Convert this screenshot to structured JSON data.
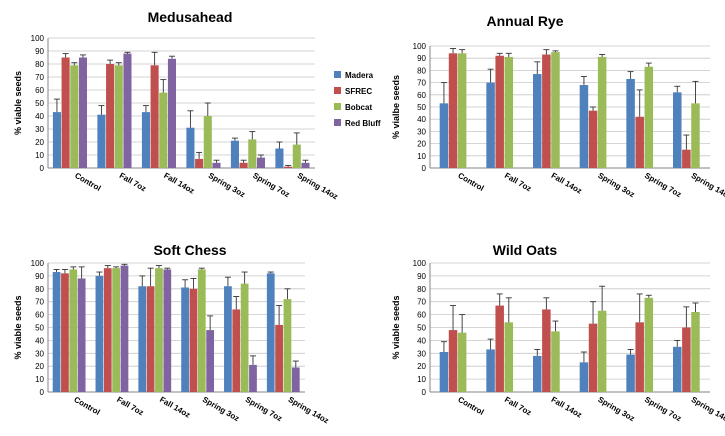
{
  "colors": {
    "Madera": "#4f81bd",
    "SFREC": "#c0504d",
    "Bobcat": "#9bbb59",
    "Red Bluff": "#8064a2",
    "error_bar": "#333333",
    "axis": "#868686",
    "grid": "#c8c8c8"
  },
  "chart_data": [
    {
      "type": "bar",
      "title": "Medusahead",
      "ylabel": "% viable seeds",
      "ylim": [
        0,
        100
      ],
      "yticks": [
        0,
        10,
        20,
        30,
        40,
        50,
        60,
        70,
        80,
        90,
        100
      ],
      "grid": true,
      "legend": "right",
      "categories": [
        "Control",
        "Fall 7oz",
        "Fall 14oz",
        "Spring 3oz",
        "Spring 7oz",
        "Spring 14oz"
      ],
      "series": [
        {
          "name": "Madera",
          "values": [
            43,
            41,
            43,
            31,
            21,
            15
          ],
          "errors": [
            10,
            7,
            5,
            13,
            2,
            5
          ]
        },
        {
          "name": "SFREC",
          "values": [
            85,
            80,
            79,
            7,
            4,
            1
          ],
          "errors": [
            3,
            3,
            10,
            5,
            2,
            1
          ]
        },
        {
          "name": "Bobcat",
          "values": [
            79,
            79,
            58,
            40,
            22,
            18
          ],
          "errors": [
            2,
            2,
            10,
            10,
            6,
            9
          ]
        },
        {
          "name": "Red Bluff",
          "values": [
            85,
            88,
            84,
            4,
            8,
            4
          ],
          "errors": [
            2,
            1,
            2,
            2,
            2,
            2
          ]
        }
      ]
    },
    {
      "type": "bar",
      "title": "Annual Rye",
      "ylabel": "% vialbe seeds",
      "ylim": [
        0,
        100
      ],
      "yticks": [
        0,
        10,
        20,
        30,
        40,
        50,
        60,
        70,
        80,
        90,
        100
      ],
      "grid": true,
      "categories": [
        "Control",
        "Fall 7oz",
        "Fall 14oz",
        "Spring 3oz",
        "Spring 7oz",
        "Spring 14oz"
      ],
      "series": [
        {
          "name": "Madera",
          "values": [
            53,
            70,
            77,
            68,
            73,
            62
          ],
          "errors": [
            17,
            11,
            10,
            7,
            6,
            5
          ]
        },
        {
          "name": "SFREC",
          "values": [
            94,
            92,
            93,
            47,
            42,
            15
          ],
          "errors": [
            4,
            2,
            4,
            3,
            22,
            12
          ]
        },
        {
          "name": "Bobcat",
          "values": [
            94,
            91,
            95,
            91,
            83,
            53
          ],
          "errors": [
            3,
            3,
            1,
            2,
            3,
            18
          ]
        }
      ]
    },
    {
      "type": "bar",
      "title": "Soft Chess",
      "ylabel": "% viable seeds",
      "ylim": [
        0,
        100
      ],
      "yticks": [
        0,
        10,
        20,
        30,
        40,
        50,
        60,
        70,
        80,
        90,
        100
      ],
      "grid": true,
      "categories": [
        "Control",
        "Fall 7oz",
        "Fall 14oz",
        "Spring 3oz",
        "Spring 7oz",
        "Spring 14oz"
      ],
      "series": [
        {
          "name": "Madera",
          "values": [
            93,
            90,
            82,
            81,
            82,
            92
          ],
          "errors": [
            2,
            3,
            8,
            6,
            7,
            1
          ]
        },
        {
          "name": "SFREC",
          "values": [
            92,
            96,
            82,
            80,
            64,
            52
          ],
          "errors": [
            3,
            2,
            14,
            8,
            10,
            15
          ]
        },
        {
          "name": "Bobcat",
          "values": [
            95,
            96,
            96,
            95,
            84,
            72
          ],
          "errors": [
            2,
            1,
            2,
            1,
            9,
            8
          ]
        },
        {
          "name": "Red Bluff",
          "values": [
            88,
            98,
            95,
            48,
            21,
            19
          ],
          "errors": [
            9,
            1,
            1,
            11,
            7,
            5
          ]
        }
      ]
    },
    {
      "type": "bar",
      "title": "Wild Oats",
      "ylabel": "% viable seeds",
      "ylim": [
        0,
        100
      ],
      "yticks": [
        0,
        10,
        20,
        30,
        40,
        50,
        60,
        70,
        80,
        90,
        100
      ],
      "grid": true,
      "categories": [
        "Control",
        "Fall 7oz",
        "Fall 14oz",
        "Spring 3oz",
        "Spring 7oz",
        "Spring 14oz"
      ],
      "series": [
        {
          "name": "Madera",
          "values": [
            31,
            33,
            28,
            23,
            29,
            35
          ],
          "errors": [
            8,
            8,
            5,
            8,
            4,
            5
          ]
        },
        {
          "name": "SFREC",
          "values": [
            48,
            67,
            64,
            53,
            54,
            50
          ],
          "errors": [
            19,
            9,
            9,
            17,
            22,
            16
          ]
        },
        {
          "name": "Bobcat",
          "values": [
            46,
            54,
            47,
            63,
            73,
            62
          ],
          "errors": [
            14,
            19,
            8,
            19,
            2,
            7
          ]
        }
      ]
    }
  ]
}
